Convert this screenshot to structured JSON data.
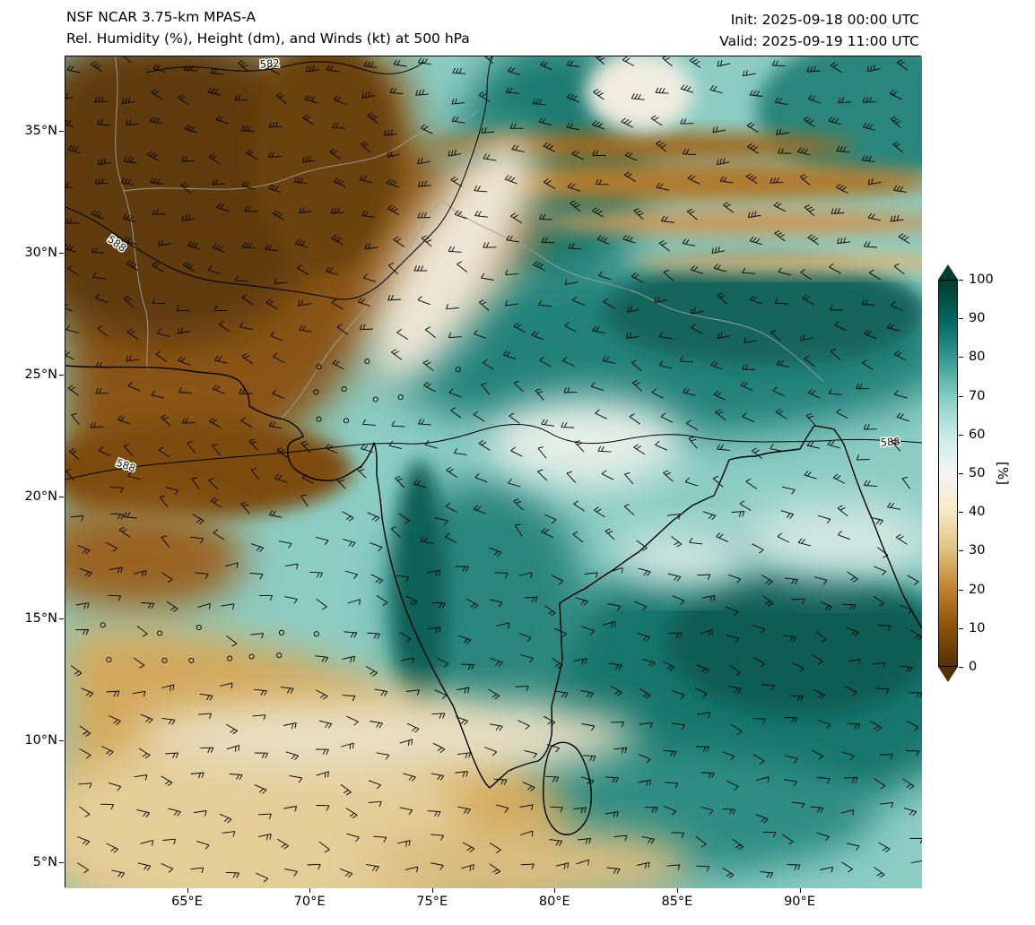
{
  "header": {
    "title_line1": "NSF NCAR 3.75-km MPAS-A",
    "title_line2": "Rel. Humidity (%), Height (dm), and Winds (kt) at 500 hPa",
    "init_label": "Init: 2025-09-18 00:00 UTC",
    "valid_label": "Valid: 2025-09-19 11:00 UTC"
  },
  "chart_data": {
    "type": "heatmap",
    "title": "Rel. Humidity (%), Height (dm), and Winds (kt) at 500 hPa",
    "model": "NSF NCAR 3.75-km MPAS-A",
    "init_time": "2025-09-18 00:00 UTC",
    "valid_time": "2025-09-19 11:00 UTC",
    "field": "Relative Humidity",
    "field_units": "%",
    "level": "500 hPa",
    "overlays": [
      "Geopotential height contours (dm)",
      "Wind barbs (kt)",
      "Coastlines and country borders"
    ],
    "x_axis": {
      "ticks": [
        "65°E",
        "70°E",
        "75°E",
        "80°E",
        "85°E",
        "90°E"
      ],
      "range_deg_e": [
        60,
        95
      ]
    },
    "y_axis": {
      "ticks_top_to_bottom": [
        "35°N",
        "30°N",
        "25°N",
        "20°N",
        "15°N",
        "10°N",
        "5°N"
      ],
      "range_deg_n": [
        4,
        38
      ]
    },
    "colorbar": {
      "label": "[%]",
      "ticks": [
        0,
        10,
        20,
        30,
        40,
        50,
        60,
        70,
        80,
        90,
        100
      ],
      "extend": "both",
      "colors": [
        "#543005",
        "#8c510a",
        "#bf812d",
        "#dfc27d",
        "#f6e8c3",
        "#f5f5f5",
        "#c7eae5",
        "#80cdc1",
        "#35978f",
        "#01665e",
        "#003c30"
      ]
    },
    "contours": {
      "field": "Height",
      "units": "dm",
      "labels": [
        "582",
        "588",
        "588",
        "588"
      ]
    },
    "wind": {
      "style": "barbs",
      "units": "kt"
    },
    "field_summary": [
      {
        "region": "Northwest (Pakistan / Afghanistan, west of ~75°E north of ~22°N)",
        "rh_pct": "0-20"
      },
      {
        "region": "Central and eastern India, Bay of Bengal",
        "rh_pct": "70-95"
      },
      {
        "region": "Southwestern Arabian Sea corner (south of ~12°N west of ~75°E)",
        "rh_pct": "20-50"
      },
      {
        "region": "Dry streaks across ~32-34°N extending east",
        "rh_pct": "20-40"
      }
    ]
  }
}
